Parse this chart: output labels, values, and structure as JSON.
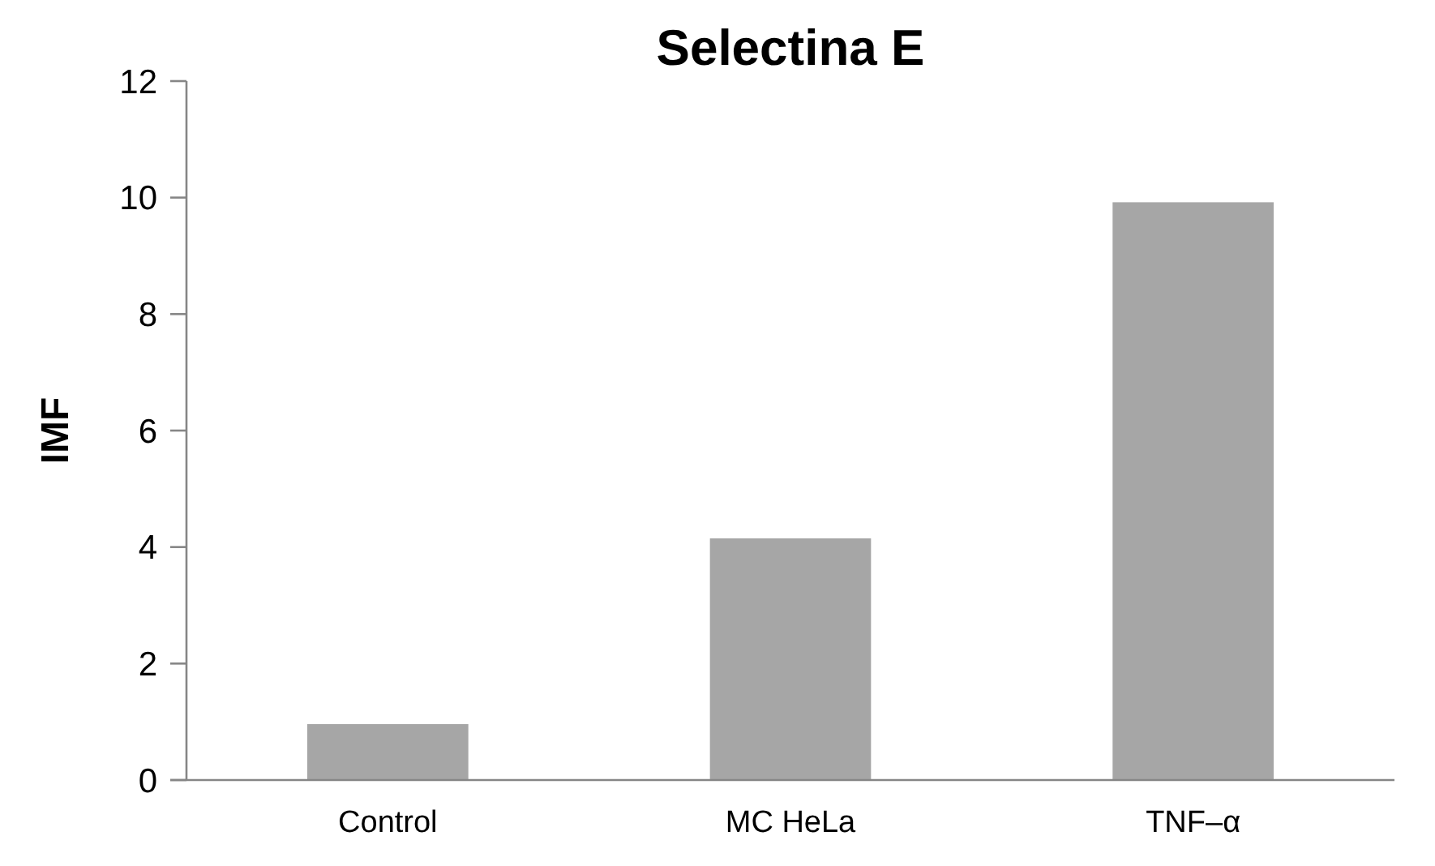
{
  "chart_data": {
    "type": "bar",
    "title": "Selectina E",
    "ylabel": "IMF",
    "categories": [
      "Control",
      "MC HeLa",
      "TNF–α"
    ],
    "values": [
      0.96,
      4.15,
      9.92
    ],
    "color": "#a6a6a6",
    "ylim": [
      0,
      12
    ],
    "yticks": [
      0,
      2,
      4,
      6,
      8,
      10,
      12
    ],
    "grid": false
  }
}
